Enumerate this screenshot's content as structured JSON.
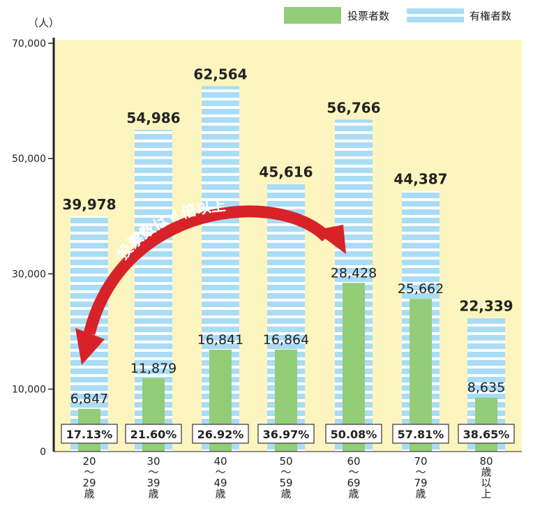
{
  "chart_data": {
    "type": "bar",
    "unit_label": "（人）",
    "categories": [
      [
        "20",
        "〜",
        "29",
        "歳"
      ],
      [
        "30",
        "〜",
        "39",
        "歳"
      ],
      [
        "40",
        "〜",
        "49",
        "歳"
      ],
      [
        "50",
        "〜",
        "59",
        "歳"
      ],
      [
        "60",
        "〜",
        "69",
        "歳"
      ],
      [
        "70",
        "〜",
        "79",
        "歳"
      ],
      [
        "80",
        "歳",
        "以",
        "上"
      ]
    ],
    "series": [
      {
        "name": "有権者数",
        "values": [
          39978,
          54986,
          62564,
          45616,
          56766,
          44387,
          22339
        ],
        "labels": [
          "39,978",
          "54,986",
          "62,564",
          "45,616",
          "56,766",
          "44,387",
          "22,339"
        ],
        "color": "#a9dcf5",
        "pattern": "horizontal-stripes"
      },
      {
        "name": "投票者数",
        "values": [
          6847,
          11879,
          16841,
          16864,
          28428,
          25662,
          8635
        ],
        "labels": [
          "6,847",
          "11,879",
          "16,841",
          "16,864",
          "28,428",
          "25,662",
          "8,635"
        ],
        "color": "#93cd78"
      }
    ],
    "turnout_labels": [
      "17.13%",
      "21.60%",
      "26.92%",
      "36.97%",
      "50.08%",
      "57.81%",
      "38.65%"
    ],
    "y_ticks": [
      {
        "value": 0,
        "label": "0"
      },
      {
        "value": 10000,
        "label": "10,000"
      },
      {
        "value": 30000,
        "label": "30,000"
      },
      {
        "value": 50000,
        "label": "50,000"
      },
      {
        "value": 70000,
        "label": "70,000"
      }
    ],
    "ylim": [
      0,
      70000
    ],
    "annotation": {
      "text": "投票数は４倍以上",
      "from_category": 0,
      "to_category": 4,
      "color": "#d8222a"
    },
    "background_color": "#fdf5bf",
    "legend_position": "top-right",
    "grid": false
  }
}
